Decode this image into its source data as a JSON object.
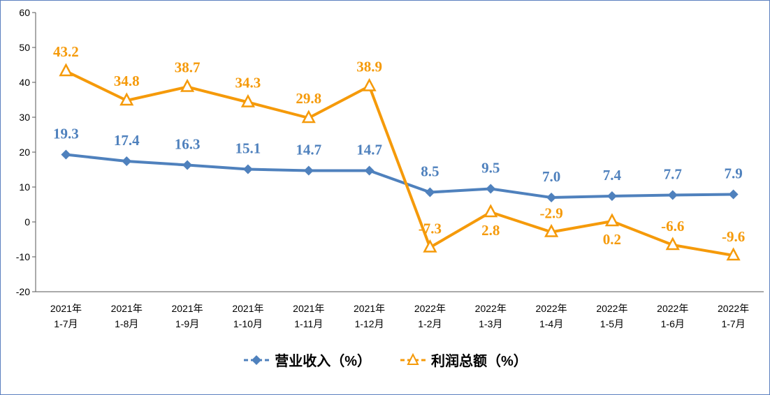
{
  "chart_data": {
    "type": "line",
    "categories": [
      "2021年\n1-7月",
      "2021年\n1-8月",
      "2021年\n1-9月",
      "2021年\n1-10月",
      "2021年\n1-11月",
      "2021年\n1-12月",
      "2022年\n1-2月",
      "2022年\n1-3月",
      "2022年\n1-4月",
      "2022年\n1-5月",
      "2022年\n1-6月",
      "2022年\n1-7月"
    ],
    "series": [
      {
        "name": "营业收入（%）",
        "color": "#4f81bd",
        "marker": "diamond",
        "values": [
          19.3,
          17.4,
          16.3,
          15.1,
          14.7,
          14.7,
          8.5,
          9.5,
          7.0,
          7.4,
          7.7,
          7.9
        ],
        "value_labels": [
          "19.3",
          "17.4",
          "16.3",
          "15.1",
          "14.7",
          "14.7",
          "8.5",
          "9.5",
          "7.0",
          "7.4",
          "7.7",
          "7.9"
        ]
      },
      {
        "name": "利润总额（%）",
        "color": "#f59a0a",
        "marker": "triangle",
        "values": [
          43.2,
          34.8,
          38.7,
          34.3,
          29.8,
          38.9,
          -7.3,
          2.8,
          -2.9,
          0.2,
          -6.6,
          -9.6
        ],
        "value_labels": [
          "43.2",
          "34.8",
          "38.7",
          "34.3",
          "29.8",
          "38.9",
          "-7.3",
          "2.8",
          "-2.9",
          "0.2",
          "-6.6",
          "-9.6"
        ]
      }
    ],
    "ylim": [
      -20,
      60
    ],
    "yticks": [
      -20,
      -10,
      0,
      10,
      20,
      30,
      40,
      50,
      60
    ],
    "grid": false,
    "legend": "bottom"
  }
}
